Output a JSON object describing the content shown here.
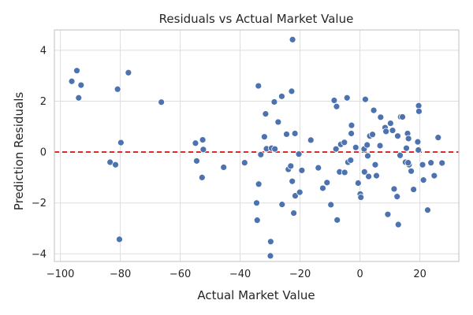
{
  "chart_data": {
    "type": "scatter",
    "title": "Residuals vs Actual Market Value",
    "xlabel": "Actual Market Value",
    "ylabel": "Prediction Residuals",
    "xlim": [
      -102,
      33
    ],
    "ylim": [
      -4.3,
      4.8
    ],
    "xticks": [
      -100,
      -80,
      -60,
      -40,
      -20,
      0,
      20
    ],
    "yticks": [
      -4,
      -2,
      0,
      2,
      4
    ],
    "grid": true,
    "point_color": "#4c72b0",
    "reference_line": {
      "y": 0,
      "color": "#e31a1c",
      "style": "dashed"
    },
    "points": [
      {
        "x": -96.2,
        "y": 2.78
      },
      {
        "x": -94.5,
        "y": 3.2
      },
      {
        "x": -93.9,
        "y": 2.13
      },
      {
        "x": -93.1,
        "y": 2.63
      },
      {
        "x": -80.9,
        "y": 2.47
      },
      {
        "x": -77.3,
        "y": 3.12
      },
      {
        "x": -66.3,
        "y": 1.96
      },
      {
        "x": -83.4,
        "y": -0.4
      },
      {
        "x": -81.6,
        "y": -0.5
      },
      {
        "x": -79.8,
        "y": 0.37
      },
      {
        "x": -80.3,
        "y": -3.43
      },
      {
        "x": -54.9,
        "y": 0.35
      },
      {
        "x": -54.5,
        "y": -0.35
      },
      {
        "x": -52.5,
        "y": 0.48
      },
      {
        "x": -52.3,
        "y": 0.1
      },
      {
        "x": -52.7,
        "y": -1.0
      },
      {
        "x": -45.5,
        "y": -0.6
      },
      {
        "x": -38.5,
        "y": -0.42
      },
      {
        "x": -33.9,
        "y": 2.6
      },
      {
        "x": -34.5,
        "y": -2.0
      },
      {
        "x": -34.3,
        "y": -2.68
      },
      {
        "x": -33.8,
        "y": -1.26
      },
      {
        "x": -33.1,
        "y": -0.1
      },
      {
        "x": -31.9,
        "y": 0.6
      },
      {
        "x": -31.5,
        "y": 1.5
      },
      {
        "x": -31.2,
        "y": 0.13
      },
      {
        "x": -29.8,
        "y": -3.52
      },
      {
        "x": -29.9,
        "y": -4.08
      },
      {
        "x": -29.5,
        "y": 0.15
      },
      {
        "x": -28.6,
        "y": 1.97
      },
      {
        "x": -27.3,
        "y": 1.18
      },
      {
        "x": -28.4,
        "y": 0.12
      },
      {
        "x": -26.1,
        "y": 2.19
      },
      {
        "x": -26.0,
        "y": -2.06
      },
      {
        "x": -24.5,
        "y": 0.7
      },
      {
        "x": -23.9,
        "y": -0.68
      },
      {
        "x": -22.8,
        "y": 2.39
      },
      {
        "x": -22.5,
        "y": 4.42
      },
      {
        "x": -23.1,
        "y": -0.55
      },
      {
        "x": -22.6,
        "y": -1.15
      },
      {
        "x": -22.1,
        "y": -2.4
      },
      {
        "x": -21.6,
        "y": -1.72
      },
      {
        "x": -21.7,
        "y": 0.73
      },
      {
        "x": -20.4,
        "y": -0.08
      },
      {
        "x": -20.1,
        "y": -1.58
      },
      {
        "x": -19.4,
        "y": -0.72
      },
      {
        "x": -16.4,
        "y": 0.47
      },
      {
        "x": -13.9,
        "y": -0.62
      },
      {
        "x": -12.4,
        "y": -1.42
      },
      {
        "x": -11.0,
        "y": -1.2
      },
      {
        "x": -9.7,
        "y": -2.07
      },
      {
        "x": -8.6,
        "y": 2.03
      },
      {
        "x": -7.8,
        "y": 1.79
      },
      {
        "x": -8.0,
        "y": 0.12
      },
      {
        "x": -7.6,
        "y": -2.67
      },
      {
        "x": -6.8,
        "y": -0.78
      },
      {
        "x": -6.4,
        "y": 0.3
      },
      {
        "x": -5.2,
        "y": 0.38
      },
      {
        "x": -5.1,
        "y": -0.8
      },
      {
        "x": -4.3,
        "y": 2.13
      },
      {
        "x": -4.0,
        "y": -0.4
      },
      {
        "x": -2.8,
        "y": 1.05
      },
      {
        "x": -3.1,
        "y": -0.32
      },
      {
        "x": -2.9,
        "y": 0.73
      },
      {
        "x": -1.4,
        "y": 0.18
      },
      {
        "x": -0.6,
        "y": -1.22
      },
      {
        "x": 0.1,
        "y": -1.65
      },
      {
        "x": 0.3,
        "y": -1.78
      },
      {
        "x": 1.4,
        "y": 0.12
      },
      {
        "x": 1.5,
        "y": -0.78
      },
      {
        "x": 1.8,
        "y": 2.07
      },
      {
        "x": 2.4,
        "y": 0.28
      },
      {
        "x": 2.6,
        "y": -0.15
      },
      {
        "x": 2.9,
        "y": -0.96
      },
      {
        "x": 3.3,
        "y": 0.63
      },
      {
        "x": 4.2,
        "y": 0.69
      },
      {
        "x": 4.6,
        "y": 1.64
      },
      {
        "x": 5.1,
        "y": -0.5
      },
      {
        "x": 5.5,
        "y": -0.93
      },
      {
        "x": 6.7,
        "y": 0.25
      },
      {
        "x": 6.9,
        "y": 1.37
      },
      {
        "x": 8.4,
        "y": 0.96
      },
      {
        "x": 8.7,
        "y": 0.81
      },
      {
        "x": 9.3,
        "y": -2.45
      },
      {
        "x": 10.2,
        "y": 1.13
      },
      {
        "x": 10.9,
        "y": 0.85
      },
      {
        "x": 11.4,
        "y": -1.45
      },
      {
        "x": 12.4,
        "y": -1.75
      },
      {
        "x": 12.8,
        "y": -2.85
      },
      {
        "x": 12.6,
        "y": 0.63
      },
      {
        "x": 13.4,
        "y": -0.13
      },
      {
        "x": 13.6,
        "y": 1.38
      },
      {
        "x": 14.2,
        "y": 1.38
      },
      {
        "x": 15.2,
        "y": -0.4
      },
      {
        "x": 15.5,
        "y": 0.15
      },
      {
        "x": 15.9,
        "y": 0.73
      },
      {
        "x": 16.2,
        "y": 0.53
      },
      {
        "x": 16.4,
        "y": -0.5
      },
      {
        "x": 16.1,
        "y": -0.42
      },
      {
        "x": 17.1,
        "y": -0.75
      },
      {
        "x": 17.9,
        "y": -1.47
      },
      {
        "x": 19.3,
        "y": 0.4
      },
      {
        "x": 19.6,
        "y": 1.82
      },
      {
        "x": 19.7,
        "y": 1.6
      },
      {
        "x": 19.5,
        "y": 0.08
      },
      {
        "x": 20.9,
        "y": -0.5
      },
      {
        "x": 21.2,
        "y": -1.1
      },
      {
        "x": 22.6,
        "y": -2.28
      },
      {
        "x": 23.7,
        "y": -0.42
      },
      {
        "x": 24.8,
        "y": -0.93
      },
      {
        "x": 26.1,
        "y": 0.57
      },
      {
        "x": 27.4,
        "y": -0.43
      }
    ]
  }
}
